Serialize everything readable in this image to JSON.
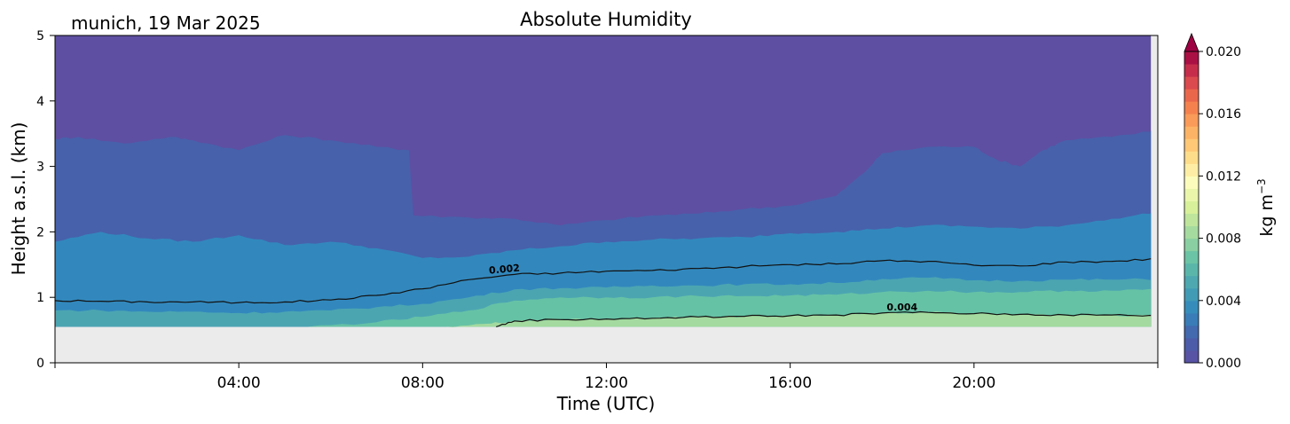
{
  "header": {
    "location_date": "munich, 19 Mar 2025"
  },
  "chart_data": {
    "type": "heatmap",
    "title": "Absolute Humidity",
    "xlabel": "Time (UTC)",
    "ylabel": "Height a.s.l. (km)",
    "x_range_hours": [
      0,
      24
    ],
    "ylim": [
      0,
      5
    ],
    "x_ticks": [
      "04:00",
      "08:00",
      "12:00",
      "16:00",
      "20:00"
    ],
    "x_tick_hours": [
      4,
      8,
      12,
      16,
      20
    ],
    "y_ticks": [
      "0",
      "1",
      "2",
      "3",
      "4",
      "5"
    ],
    "data_bottom_km": 0.55,
    "colorbar": {
      "label": "kg m",
      "label_sup": "−3",
      "range": [
        0,
        0.02
      ],
      "ticks": [
        "0.000",
        "0.004",
        "0.008",
        "0.012",
        "0.016",
        "0.020"
      ],
      "extend": "max",
      "colors": [
        "#5e4fa2",
        "#4761ab",
        "#3288bd",
        "#4ba5b1",
        "#66c2a5",
        "#a4da9f",
        "#d8f09a",
        "#fefebd",
        "#feda86",
        "#fdae61",
        "#f47a4a",
        "#d53e4f",
        "#9e0142"
      ]
    },
    "contours": [
      {
        "label": "0.002",
        "points": [
          [
            0,
            0.95
          ],
          [
            1,
            0.94
          ],
          [
            2,
            0.93
          ],
          [
            3,
            0.93
          ],
          [
            4,
            0.92
          ],
          [
            5,
            0.93
          ],
          [
            6,
            0.96
          ],
          [
            7,
            1.03
          ],
          [
            8,
            1.13
          ],
          [
            9,
            1.27
          ],
          [
            10,
            1.35
          ],
          [
            11,
            1.37
          ],
          [
            12,
            1.4
          ],
          [
            13,
            1.41
          ],
          [
            14,
            1.44
          ],
          [
            15,
            1.47
          ],
          [
            16,
            1.5
          ],
          [
            17,
            1.51
          ],
          [
            18,
            1.56
          ],
          [
            19,
            1.55
          ],
          [
            20,
            1.49
          ],
          [
            21,
            1.48
          ],
          [
            22,
            1.54
          ],
          [
            23,
            1.55
          ],
          [
            24,
            1.59
          ]
        ]
      },
      {
        "label": "0.004",
        "points": [
          [
            9.6,
            0.55
          ],
          [
            10,
            0.64
          ],
          [
            11,
            0.66
          ],
          [
            12,
            0.67
          ],
          [
            13,
            0.68
          ],
          [
            14,
            0.7
          ],
          [
            15,
            0.71
          ],
          [
            16,
            0.72
          ],
          [
            17,
            0.73
          ],
          [
            18,
            0.76
          ],
          [
            19,
            0.77
          ],
          [
            20,
            0.75
          ],
          [
            21,
            0.74
          ],
          [
            22,
            0.73
          ],
          [
            23,
            0.73
          ],
          [
            24,
            0.72
          ]
        ]
      }
    ],
    "bands": [
      {
        "level": 0,
        "upper": [
          [
            0,
            5
          ],
          [
            24,
            5
          ]
        ]
      },
      {
        "level": 1,
        "upper": [
          [
            0,
            3.42
          ],
          [
            0.5,
            3.45
          ],
          [
            1.5,
            3.35
          ],
          [
            2.5,
            3.45
          ],
          [
            3,
            3.4
          ],
          [
            4,
            3.25
          ],
          [
            5,
            3.48
          ],
          [
            6,
            3.4
          ],
          [
            7,
            3.3
          ],
          [
            7.7,
            3.25
          ],
          [
            7.8,
            2.25
          ],
          [
            9,
            2.22
          ],
          [
            10,
            2.2
          ],
          [
            11,
            2.1
          ],
          [
            12,
            2.18
          ],
          [
            13,
            2.25
          ],
          [
            14,
            2.28
          ],
          [
            15,
            2.35
          ],
          [
            16,
            2.4
          ],
          [
            17,
            2.55
          ],
          [
            17.6,
            2.9
          ],
          [
            18,
            3.2
          ],
          [
            19,
            3.3
          ],
          [
            20,
            3.3
          ],
          [
            20.5,
            3.1
          ],
          [
            21,
            3.0
          ],
          [
            21.5,
            3.25
          ],
          [
            22,
            3.4
          ],
          [
            23,
            3.45
          ],
          [
            24,
            3.55
          ]
        ]
      },
      {
        "level": 2,
        "upper": [
          [
            0,
            1.85
          ],
          [
            1,
            2.0
          ],
          [
            2,
            1.9
          ],
          [
            3,
            1.85
          ],
          [
            4,
            1.95
          ],
          [
            5,
            1.8
          ],
          [
            6,
            1.85
          ],
          [
            7,
            1.75
          ],
          [
            8,
            1.6
          ],
          [
            9,
            1.62
          ],
          [
            10,
            1.72
          ],
          [
            11,
            1.78
          ],
          [
            12,
            1.85
          ],
          [
            13,
            1.88
          ],
          [
            14,
            1.9
          ],
          [
            15,
            1.92
          ],
          [
            16,
            1.98
          ],
          [
            17,
            2.0
          ],
          [
            18,
            2.05
          ],
          [
            19,
            2.1
          ],
          [
            20,
            2.08
          ],
          [
            21,
            2.05
          ],
          [
            22,
            2.1
          ],
          [
            23,
            2.2
          ],
          [
            24,
            2.3
          ]
        ]
      },
      {
        "level": 3,
        "upper": [
          [
            0,
            0.8
          ],
          [
            1,
            0.8
          ],
          [
            2,
            0.78
          ],
          [
            3,
            0.78
          ],
          [
            4,
            0.76
          ],
          [
            5,
            0.78
          ],
          [
            6,
            0.8
          ],
          [
            7,
            0.85
          ],
          [
            8,
            0.9
          ],
          [
            9,
            1.0
          ],
          [
            10,
            1.12
          ],
          [
            11,
            1.14
          ],
          [
            12,
            1.15
          ],
          [
            13,
            1.18
          ],
          [
            14,
            1.18
          ],
          [
            15,
            1.2
          ],
          [
            16,
            1.2
          ],
          [
            17,
            1.22
          ],
          [
            18,
            1.28
          ],
          [
            19,
            1.3
          ],
          [
            20,
            1.26
          ],
          [
            21,
            1.25
          ],
          [
            22,
            1.27
          ],
          [
            23,
            1.27
          ],
          [
            24,
            1.28
          ]
        ]
      },
      {
        "level": 4,
        "upper": [
          [
            5.5,
            0.55
          ],
          [
            7,
            0.62
          ],
          [
            8,
            0.7
          ],
          [
            9,
            0.8
          ],
          [
            10,
            0.95
          ],
          [
            11,
            1.0
          ],
          [
            12,
            1.0
          ],
          [
            13,
            1.0
          ],
          [
            14,
            1.02
          ],
          [
            15,
            1.02
          ],
          [
            16,
            1.03
          ],
          [
            17,
            1.04
          ],
          [
            18,
            1.08
          ],
          [
            19,
            1.1
          ],
          [
            20,
            1.08
          ],
          [
            21,
            1.08
          ],
          [
            22,
            1.1
          ],
          [
            23,
            1.1
          ],
          [
            24,
            1.12
          ]
        ]
      },
      {
        "level": 5,
        "upper": [
          [
            8.5,
            0.55
          ],
          [
            9.5,
            0.6
          ],
          [
            10,
            0.64
          ],
          [
            11,
            0.66
          ],
          [
            12,
            0.67
          ],
          [
            13,
            0.68
          ],
          [
            14,
            0.7
          ],
          [
            15,
            0.71
          ],
          [
            16,
            0.72
          ],
          [
            17,
            0.73
          ],
          [
            18,
            0.76
          ],
          [
            19,
            0.77
          ],
          [
            20,
            0.75
          ],
          [
            21,
            0.74
          ],
          [
            22,
            0.73
          ],
          [
            23,
            0.73
          ],
          [
            24,
            0.72
          ]
        ]
      }
    ]
  }
}
